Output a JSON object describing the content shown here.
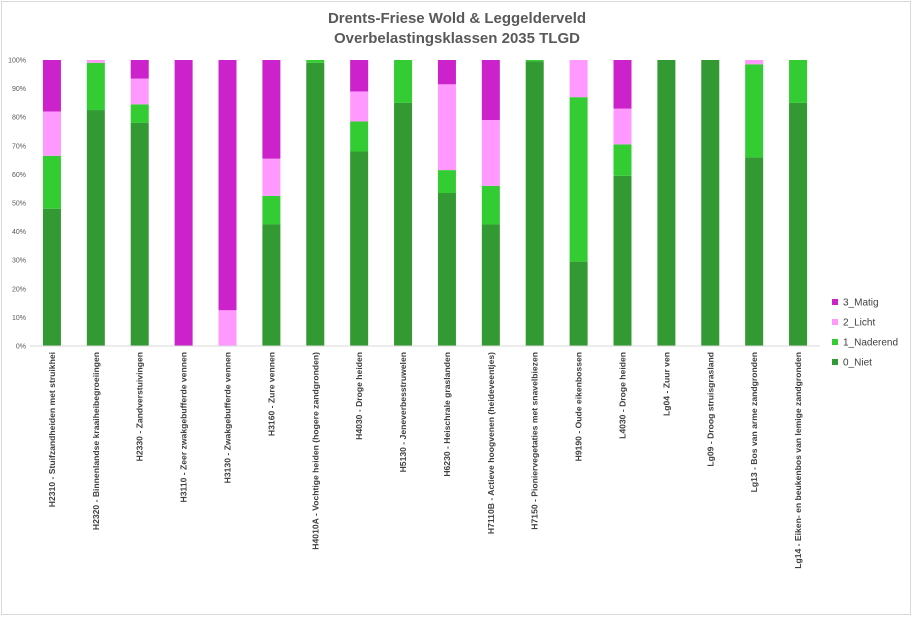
{
  "chart_data": {
    "type": "bar",
    "stacked": true,
    "percent": true,
    "title": "Drents-Friese Wold & Leggelderveld",
    "subtitle": "Overbelastingsklassen 2035 TLGD",
    "xlabel": "",
    "ylabel": "",
    "ylim": [
      0,
      100
    ],
    "yticks": [
      "0%",
      "10%",
      "20%",
      "30%",
      "40%",
      "50%",
      "60%",
      "70%",
      "80%",
      "90%",
      "100%"
    ],
    "grid": false,
    "legend_position": "right",
    "categories": [
      "H2310 - Stuifzandheiden met struikhei",
      "H2320 - Binnenlandse kraaiheibegroeiingen",
      "H2330 - Zandverstuivingen",
      "H3110 - Zeer zwakgebufferde vennen",
      "H3130 - Zwakgebufferde vennen",
      "H3160 - Zure vennen",
      "H4010A - Vochtige heiden (hogere zandgronden)",
      "H4030 - Droge heiden",
      "H5130 - Jeneverbesstruwelen",
      "H6230 - Heischrale graslanden",
      "H7110B - Actieve hoogvenen (heideveentjes)",
      "H7150 - Pioniervegetaties met snavelbiezen",
      "H9190 - Oude eikenbossen",
      "L4030 - Droge heiden",
      "Lg04 - Zuur ven",
      "Lg09 - Droog struisgrasland",
      "Lg13 - Bos van arme zandgronden",
      "Lg14 - Eiken- en beukenbos van lemige zandgronden"
    ],
    "series": [
      {
        "name": "0_Niet",
        "color": "#339933",
        "values": [
          48,
          82.5,
          78,
          0,
          0,
          42.5,
          99,
          68,
          85,
          53.5,
          42.5,
          99.5,
          29.5,
          59.5,
          100,
          100,
          66,
          85
        ]
      },
      {
        "name": "1_Naderend",
        "color": "#33cc33",
        "values": [
          18.5,
          16.5,
          6.5,
          0,
          0,
          10,
          1,
          10.5,
          15,
          8,
          13.5,
          0.5,
          57.5,
          11,
          0,
          0,
          32.5,
          15
        ]
      },
      {
        "name": "2_Licht",
        "color": "#ff99ff",
        "values": [
          15.5,
          1,
          9,
          0,
          12.5,
          13,
          0,
          10.5,
          0,
          30,
          23,
          0,
          13,
          12.5,
          0,
          0,
          1.5,
          0
        ]
      },
      {
        "name": "3_Matig",
        "color": "#cc22cc",
        "values": [
          18,
          0,
          6.5,
          100,
          87.5,
          34.5,
          0,
          11,
          0,
          8.5,
          21,
          0,
          0,
          17,
          0,
          0,
          0,
          0
        ]
      }
    ],
    "legend_order": [
      "3_Matig",
      "2_Licht",
      "1_Naderend",
      "0_Niet"
    ]
  }
}
